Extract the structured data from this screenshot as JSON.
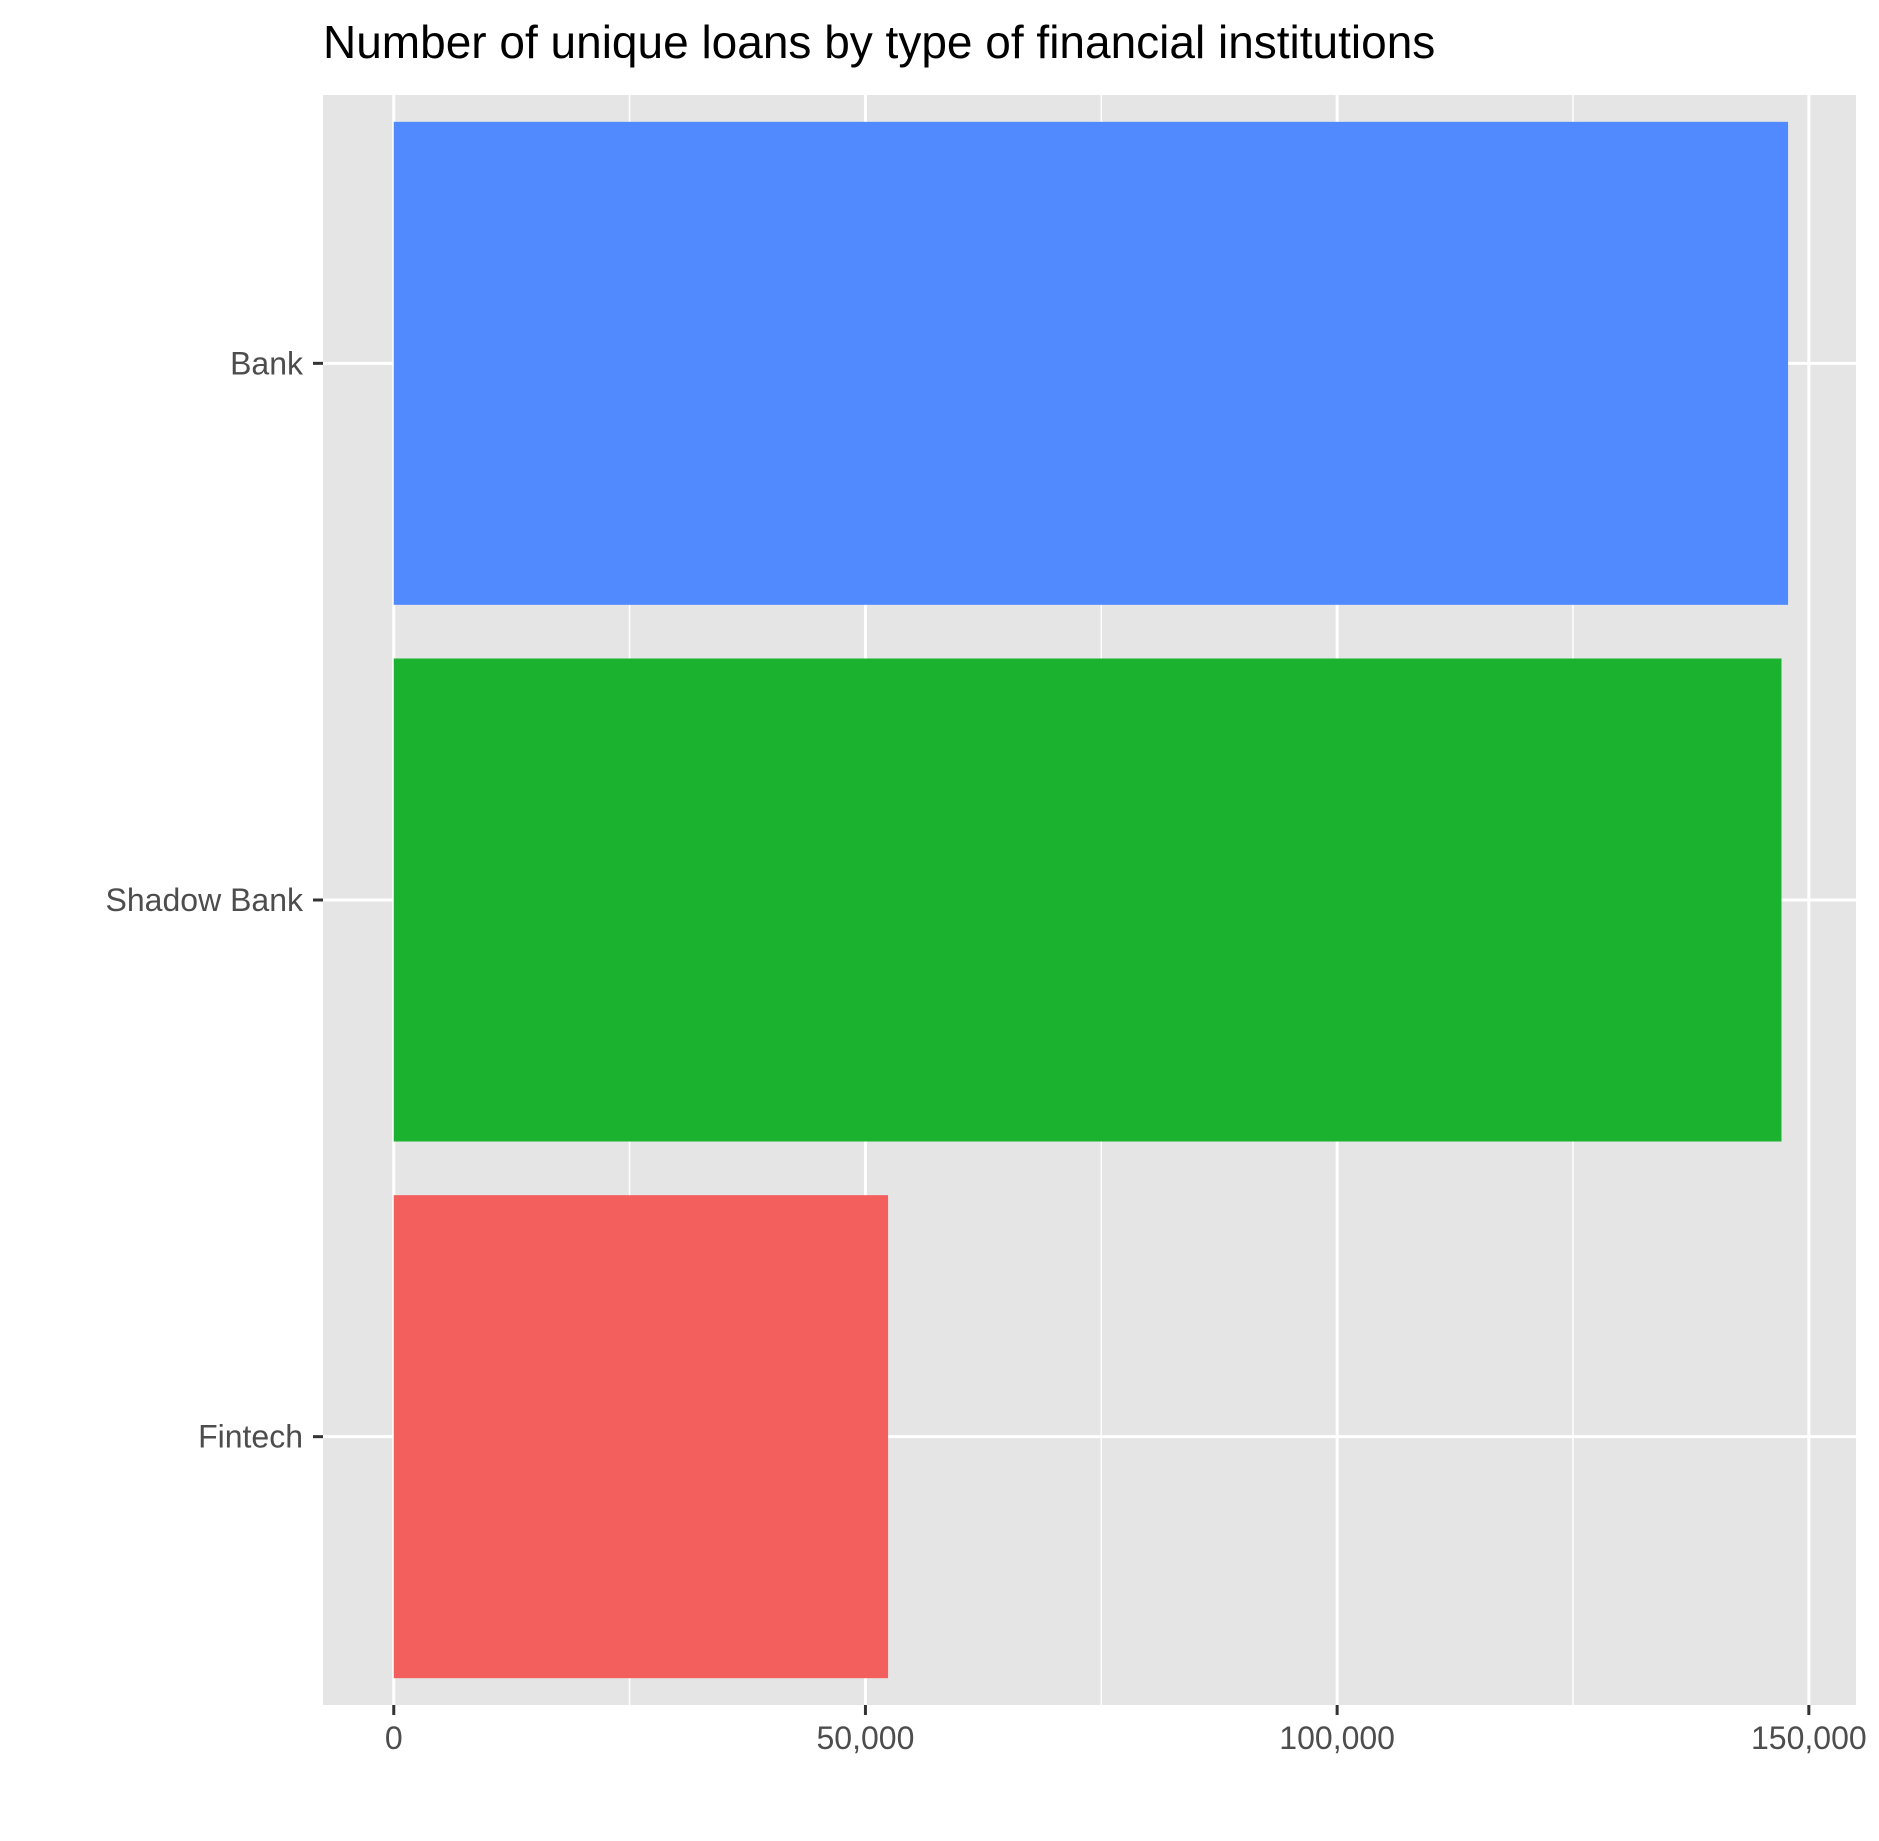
{
  "chart_data": {
    "type": "bar",
    "orientation": "horizontal",
    "title": "Number of unique loans by type of financial institutions",
    "xlabel": "",
    "ylabel": "",
    "categories": [
      "Bank",
      "Shadow Bank",
      "Fintech"
    ],
    "values": [
      147800,
      147100,
      52400
    ],
    "colors": [
      "#518AFF",
      "#1AB22F",
      "#F25F5C"
    ],
    "xlim": [
      -7500,
      155000
    ],
    "x_ticks": [
      0,
      50000,
      100000,
      150000
    ],
    "x_tick_labels": [
      "0",
      "50,000",
      "100,000",
      "150,000"
    ],
    "x_minor_ticks": [
      25000,
      75000,
      125000
    ],
    "grid": true,
    "legend": "none",
    "background": "#E5E5E5",
    "gridline_color": "#FFFFFF"
  }
}
